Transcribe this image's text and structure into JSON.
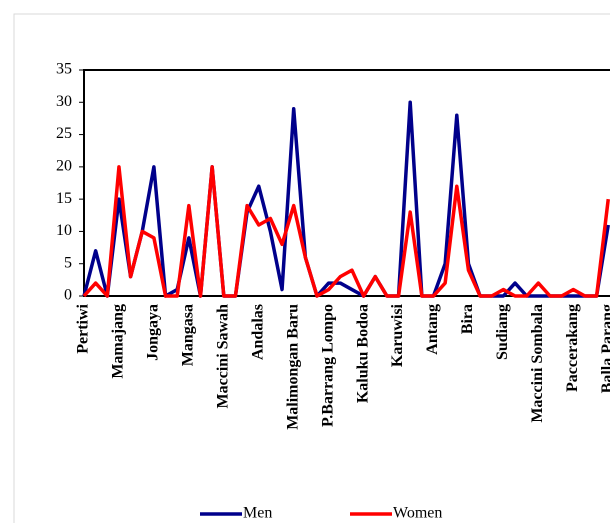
{
  "chart_data": {
    "type": "line",
    "categories": [
      "Pertiwi",
      null,
      null,
      "Mamajang",
      null,
      null,
      "Jongaya",
      null,
      null,
      "Mangasa",
      null,
      null,
      "Maccini Sawah",
      null,
      null,
      "Andalas",
      null,
      null,
      "Malimongan Baru",
      null,
      null,
      "P.Barrang Lompo",
      null,
      null,
      "Kaluku Bodoa",
      null,
      null,
      "Karuwisi",
      null,
      null,
      "Antang",
      null,
      null,
      "Bira",
      null,
      null,
      "Sudiang",
      null,
      null,
      "Maccini Sombala",
      null,
      null,
      "Paccerakang",
      null,
      null,
      "Balla Parang"
    ],
    "series": [
      {
        "name": "Men",
        "color": "#00008b",
        "values": [
          0,
          7,
          0,
          15,
          3,
          10,
          20,
          0,
          1,
          9,
          0,
          20,
          0,
          0,
          13,
          17,
          10,
          1,
          29,
          6,
          0,
          2,
          2,
          1,
          0,
          3,
          0,
          0,
          30,
          0,
          0,
          5,
          28,
          5,
          0,
          0,
          0,
          2,
          0,
          0,
          0,
          0,
          0,
          0,
          0,
          11
        ]
      },
      {
        "name": "Women",
        "color": "#ff0000",
        "values": [
          0,
          2,
          0,
          20,
          3,
          10,
          9,
          0,
          0,
          14,
          0,
          20,
          0,
          0,
          14,
          11,
          12,
          8,
          14,
          6,
          0,
          1,
          3,
          4,
          0,
          3,
          0,
          0,
          13,
          0,
          0,
          2,
          17,
          4,
          0,
          0,
          1,
          0,
          0,
          2,
          0,
          0,
          1,
          0,
          0,
          15
        ]
      }
    ],
    "ylim": [
      0,
      35
    ],
    "yticks": [
      0,
      5,
      10,
      15,
      20,
      25,
      30,
      35
    ],
    "legend": "bottom"
  }
}
